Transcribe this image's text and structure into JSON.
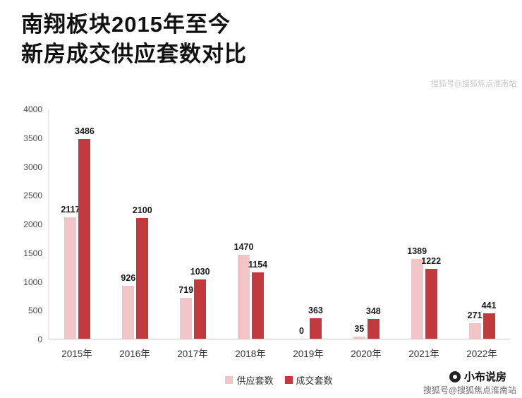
{
  "title": {
    "line1": "南翔板块2015年至今",
    "line2": "新房成交供应套数对比"
  },
  "watermark_top": "搜狐号@搜狐焦点淮南站",
  "footer": {
    "brand": "小布说房",
    "source": "搜狐号@搜狐焦点淮南站"
  },
  "chart_data": {
    "type": "bar",
    "title": "南翔板块2015年至今新房成交供应套数对比",
    "categories": [
      "2015年",
      "2016年",
      "2017年",
      "2018年",
      "2019年",
      "2020年",
      "2021年",
      "2022年"
    ],
    "series": [
      {
        "key": "supply",
        "name": "供应套数",
        "color": "#f1c5c7",
        "values": [
          2117,
          926,
          719,
          1470,
          0,
          35,
          1389,
          271
        ]
      },
      {
        "key": "deal",
        "name": "成交套数",
        "color": "#c23a3d",
        "values": [
          3486,
          2100,
          1030,
          1154,
          363,
          348,
          1222,
          441
        ]
      }
    ],
    "xlabel": "",
    "ylabel": "",
    "ylim": [
      0,
      4000
    ],
    "yticks": [
      0,
      500,
      1000,
      1500,
      2000,
      2500,
      3000,
      3500,
      4000
    ],
    "grid": false,
    "legend_position": "bottom"
  }
}
